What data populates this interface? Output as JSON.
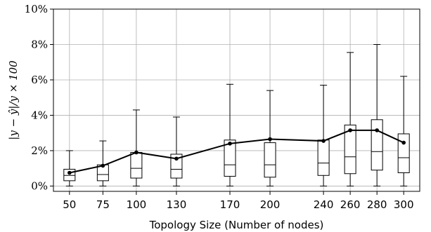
{
  "chart_data": {
    "type": "box",
    "xlabel": "Topology Size (Number of nodes)",
    "ylabel": "|y − ŷ|/y × 100",
    "x_ticks": [
      50,
      75,
      100,
      130,
      170,
      200,
      240,
      260,
      280,
      300
    ],
    "y_ticks": [
      "0%",
      "2%",
      "4%",
      "6%",
      "8%",
      "10%"
    ],
    "y_tick_values": [
      0,
      2,
      4,
      6,
      8,
      10
    ],
    "ylim": [
      -0.3,
      10
    ],
    "xlim": [
      38,
      312
    ],
    "grid": true,
    "boxes": [
      {
        "x": 50,
        "whislo": 0.0,
        "q1": 0.3,
        "med": 0.6,
        "q3": 0.95,
        "whishi": 2.0
      },
      {
        "x": 75,
        "whislo": 0.0,
        "q1": 0.3,
        "med": 0.65,
        "q3": 1.2,
        "whishi": 2.55
      },
      {
        "x": 100,
        "whislo": 0.0,
        "q1": 0.45,
        "med": 1.0,
        "q3": 1.9,
        "whishi": 4.3
      },
      {
        "x": 130,
        "whislo": 0.0,
        "q1": 0.45,
        "med": 0.95,
        "q3": 1.8,
        "whishi": 3.9
      },
      {
        "x": 170,
        "whislo": 0.0,
        "q1": 0.55,
        "med": 1.2,
        "q3": 2.6,
        "whishi": 5.75
      },
      {
        "x": 200,
        "whislo": 0.0,
        "q1": 0.5,
        "med": 1.2,
        "q3": 2.45,
        "whishi": 5.4
      },
      {
        "x": 240,
        "whislo": 0.0,
        "q1": 0.6,
        "med": 1.3,
        "q3": 2.6,
        "whishi": 5.7
      },
      {
        "x": 260,
        "whislo": 0.0,
        "q1": 0.7,
        "med": 1.65,
        "q3": 3.45,
        "whishi": 7.55
      },
      {
        "x": 280,
        "whislo": 0.0,
        "q1": 0.9,
        "med": 1.95,
        "q3": 3.75,
        "whishi": 8.0
      },
      {
        "x": 300,
        "whislo": 0.0,
        "q1": 0.75,
        "med": 1.6,
        "q3": 2.95,
        "whishi": 6.2
      }
    ],
    "mean_line": {
      "x": [
        50,
        75,
        100,
        130,
        170,
        200,
        240,
        260,
        280,
        300
      ],
      "y": [
        0.75,
        1.15,
        1.9,
        1.55,
        2.4,
        2.65,
        2.55,
        3.15,
        3.15,
        2.45
      ]
    }
  }
}
